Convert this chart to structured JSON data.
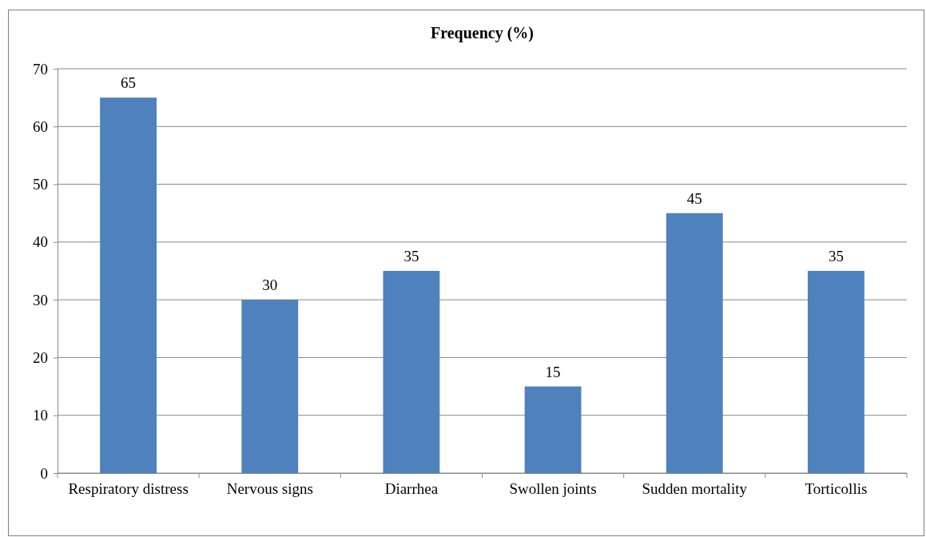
{
  "chart_data": {
    "type": "bar",
    "title": "Frequency (%)",
    "categories": [
      "Respiratory distress",
      "Nervous signs",
      "Diarrhea",
      "Swollen joints",
      "Sudden mortality",
      "Torticollis"
    ],
    "values": [
      65,
      30,
      35,
      15,
      45,
      35
    ],
    "color": "#4f81bd",
    "ylim": [
      0,
      70
    ],
    "yticks": [
      0,
      10,
      20,
      30,
      40,
      50,
      60,
      70
    ],
    "grid": "y",
    "data_labels": true
  }
}
